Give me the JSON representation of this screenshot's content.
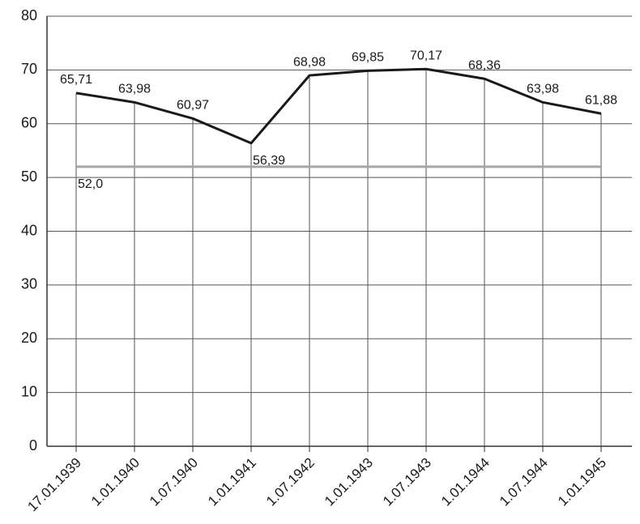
{
  "chart_data": {
    "type": "line",
    "categories": [
      "17.01.1939",
      "1.01.1940",
      "1.07.1940",
      "1.01.1941",
      "1.07.1942",
      "1.01.1943",
      "1.07.1943",
      "1.01.1944",
      "1.07.1944",
      "1.01.1945"
    ],
    "series": [
      {
        "color": "#1a1a1a",
        "values": [
          65.71,
          63.98,
          60.97,
          56.39,
          68.98,
          69.85,
          70.17,
          68.36,
          63.98,
          61.88
        ],
        "value_labels": [
          "65,71",
          "63,98",
          "60,97",
          "56,39",
          "68,98",
          "69,85",
          "70,17",
          "68,36",
          "63,98",
          "61,88"
        ]
      },
      {
        "color": "#a6a6a6",
        "values": [
          52.0,
          52.0,
          52.0,
          52.0,
          52.0,
          52.0,
          52.0,
          52.0,
          52.0,
          52.0
        ],
        "value_labels": [
          "52,0",
          null,
          null,
          null,
          null,
          null,
          null,
          null,
          null,
          null
        ]
      }
    ],
    "ylim": [
      0,
      80
    ],
    "yticks": [
      0,
      10,
      20,
      30,
      40,
      50,
      60,
      70,
      80
    ],
    "grid": true
  }
}
